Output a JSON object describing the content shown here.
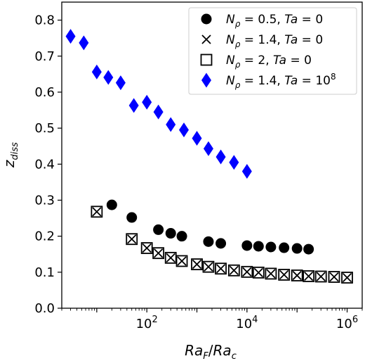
{
  "chart_data": {
    "type": "scatter",
    "xscale": "log",
    "xlim": [
      2,
      2000000
    ],
    "ylim": [
      0.0,
      0.85
    ],
    "yticks": [
      "0.0",
      "0.1",
      "0.2",
      "0.3",
      "0.4",
      "0.5",
      "0.6",
      "0.7",
      "0.8"
    ],
    "xticks": [
      {
        "value": 100,
        "base": "10",
        "exp": "2"
      },
      {
        "value": 10000,
        "base": "10",
        "exp": "4"
      },
      {
        "value": 1000000,
        "base": "10",
        "exp": "6"
      }
    ],
    "xlabel": {
      "a": "Ra",
      "a_sub": "F",
      "sep": "/",
      "b": "Ra",
      "b_sub": "c"
    },
    "ylabel": {
      "main": "z",
      "sub": "diss"
    },
    "legend_position": "top-right",
    "grid": false,
    "series": [
      {
        "name": "N_ρ = 0.5, Ta = 0",
        "legend": {
          "p1": "N",
          "sub": "ρ",
          "p2": " = 0.5, ",
          "p3": "Ta",
          "p4": " = 0"
        },
        "marker": "circle",
        "color": "#000000",
        "points": [
          {
            "x": 20,
            "y": 0.287
          },
          {
            "x": 50,
            "y": 0.252
          },
          {
            "x": 170,
            "y": 0.218
          },
          {
            "x": 300,
            "y": 0.208
          },
          {
            "x": 500,
            "y": 0.2
          },
          {
            "x": 1700,
            "y": 0.185
          },
          {
            "x": 3000,
            "y": 0.18
          },
          {
            "x": 10000,
            "y": 0.174
          },
          {
            "x": 17000,
            "y": 0.172
          },
          {
            "x": 30000,
            "y": 0.17
          },
          {
            "x": 55000,
            "y": 0.168
          },
          {
            "x": 100000,
            "y": 0.166
          },
          {
            "x": 170000,
            "y": 0.164
          }
        ]
      },
      {
        "name": "N_ρ = 1.4, Ta = 0",
        "legend": {
          "p1": "N",
          "sub": "ρ",
          "p2": " = 1.4, ",
          "p3": "Ta",
          "p4": " = 0"
        },
        "marker": "x",
        "color": "#000000",
        "points": [
          {
            "x": 10,
            "y": 0.268
          },
          {
            "x": 50,
            "y": 0.192
          },
          {
            "x": 100,
            "y": 0.167
          },
          {
            "x": 170,
            "y": 0.153
          },
          {
            "x": 300,
            "y": 0.14
          },
          {
            "x": 500,
            "y": 0.131
          },
          {
            "x": 1000,
            "y": 0.122
          },
          {
            "x": 1700,
            "y": 0.115
          },
          {
            "x": 3000,
            "y": 0.11
          },
          {
            "x": 5500,
            "y": 0.105
          },
          {
            "x": 10000,
            "y": 0.101
          },
          {
            "x": 17000,
            "y": 0.099
          },
          {
            "x": 30000,
            "y": 0.096
          },
          {
            "x": 55000,
            "y": 0.093
          },
          {
            "x": 100000,
            "y": 0.091
          },
          {
            "x": 170000,
            "y": 0.089
          },
          {
            "x": 300000,
            "y": 0.088
          },
          {
            "x": 550000,
            "y": 0.087
          },
          {
            "x": 1000000,
            "y": 0.085
          }
        ]
      },
      {
        "name": "N_ρ = 2, Ta = 0",
        "legend": {
          "p1": "N",
          "sub": "ρ",
          "p2": " = 2, ",
          "p3": "Ta",
          "p4": " = 0"
        },
        "marker": "square",
        "color": "#000000",
        "points": [
          {
            "x": 10,
            "y": 0.268
          },
          {
            "x": 50,
            "y": 0.192
          },
          {
            "x": 100,
            "y": 0.167
          },
          {
            "x": 170,
            "y": 0.153
          },
          {
            "x": 300,
            "y": 0.14
          },
          {
            "x": 500,
            "y": 0.131
          },
          {
            "x": 1000,
            "y": 0.122
          },
          {
            "x": 1700,
            "y": 0.115
          },
          {
            "x": 3000,
            "y": 0.11
          },
          {
            "x": 5500,
            "y": 0.105
          },
          {
            "x": 10000,
            "y": 0.101
          },
          {
            "x": 17000,
            "y": 0.099
          },
          {
            "x": 30000,
            "y": 0.096
          },
          {
            "x": 55000,
            "y": 0.093
          },
          {
            "x": 100000,
            "y": 0.091
          },
          {
            "x": 170000,
            "y": 0.089
          },
          {
            "x": 300000,
            "y": 0.088
          },
          {
            "x": 550000,
            "y": 0.087
          },
          {
            "x": 1000000,
            "y": 0.085
          }
        ]
      },
      {
        "name": "N_ρ = 1.4, Ta = 10^8",
        "legend": {
          "p1": "N",
          "sub": "ρ",
          "p2": " = 1.4, ",
          "p3": "Ta",
          "p4": " = 10",
          "sup": "8"
        },
        "marker": "diamond",
        "color": "#0000ff",
        "points": [
          {
            "x": 3,
            "y": 0.755
          },
          {
            "x": 5.5,
            "y": 0.737
          },
          {
            "x": 10,
            "y": 0.656
          },
          {
            "x": 17,
            "y": 0.641
          },
          {
            "x": 30,
            "y": 0.626
          },
          {
            "x": 55,
            "y": 0.563
          },
          {
            "x": 100,
            "y": 0.572
          },
          {
            "x": 170,
            "y": 0.545
          },
          {
            "x": 300,
            "y": 0.51
          },
          {
            "x": 550,
            "y": 0.495
          },
          {
            "x": 1000,
            "y": 0.472
          },
          {
            "x": 1700,
            "y": 0.443
          },
          {
            "x": 3000,
            "y": 0.42
          },
          {
            "x": 5500,
            "y": 0.405
          },
          {
            "x": 10000,
            "y": 0.38
          }
        ]
      }
    ]
  }
}
